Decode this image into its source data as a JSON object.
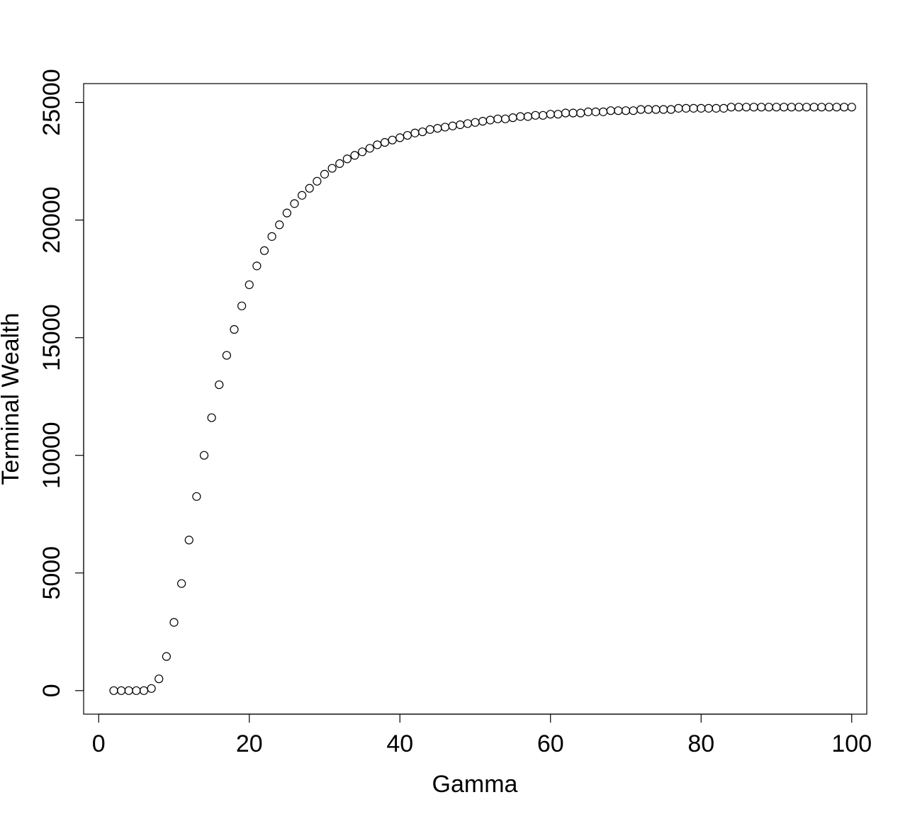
{
  "chart_data": {
    "type": "scatter",
    "title": "",
    "xlabel": "Gamma",
    "ylabel": "Terminal Wealth",
    "xlim": [
      -2,
      102
    ],
    "ylim": [
      -1000,
      25800
    ],
    "xticks": [
      0,
      20,
      40,
      60,
      80,
      100
    ],
    "yticks": [
      0,
      5000,
      10000,
      15000,
      20000,
      25000
    ],
    "grid": false,
    "legend": "none",
    "marker": "open-circle",
    "series": [
      {
        "x": [
          2,
          3,
          4,
          5,
          6,
          7,
          8,
          9,
          10,
          11,
          12,
          13,
          14,
          15,
          16,
          17,
          18,
          19,
          20,
          21,
          22,
          23,
          24,
          25,
          26,
          27,
          28,
          29,
          30,
          31,
          32,
          33,
          34,
          35,
          36,
          37,
          38,
          39,
          40,
          41,
          42,
          43,
          44,
          45,
          46,
          47,
          48,
          49,
          50,
          51,
          52,
          53,
          54,
          55,
          56,
          57,
          58,
          59,
          60,
          61,
          62,
          63,
          64,
          65,
          66,
          67,
          68,
          69,
          70,
          71,
          72,
          73,
          74,
          75,
          76,
          77,
          78,
          79,
          80,
          81,
          82,
          83,
          84,
          85,
          86,
          87,
          88,
          89,
          90,
          91,
          92,
          93,
          94,
          95,
          96,
          97,
          98,
          99,
          100
        ],
        "y": [
          0,
          0,
          0,
          0,
          0,
          90,
          500,
          1450,
          2900,
          4550,
          6400,
          8250,
          10000,
          11600,
          13000,
          14250,
          15350,
          16350,
          17250,
          18050,
          18700,
          19300,
          19800,
          20300,
          20700,
          21050,
          21350,
          21650,
          21950,
          22200,
          22400,
          22600,
          22750,
          22900,
          23050,
          23200,
          23300,
          23400,
          23500,
          23600,
          23700,
          23750,
          23850,
          23900,
          23950,
          24000,
          24050,
          24100,
          24150,
          24200,
          24250,
          24300,
          24300,
          24350,
          24400,
          24400,
          24450,
          24450,
          24500,
          24500,
          24550,
          24550,
          24550,
          24600,
          24600,
          24600,
          24650,
          24650,
          24650,
          24650,
          24700,
          24700,
          24700,
          24700,
          24700,
          24750,
          24750,
          24750,
          24750,
          24750,
          24750,
          24750,
          24800,
          24800,
          24800,
          24800,
          24800,
          24800,
          24800,
          24800,
          24800,
          24800,
          24800,
          24800,
          24800,
          24800,
          24800,
          24800,
          24800
        ]
      }
    ]
  }
}
